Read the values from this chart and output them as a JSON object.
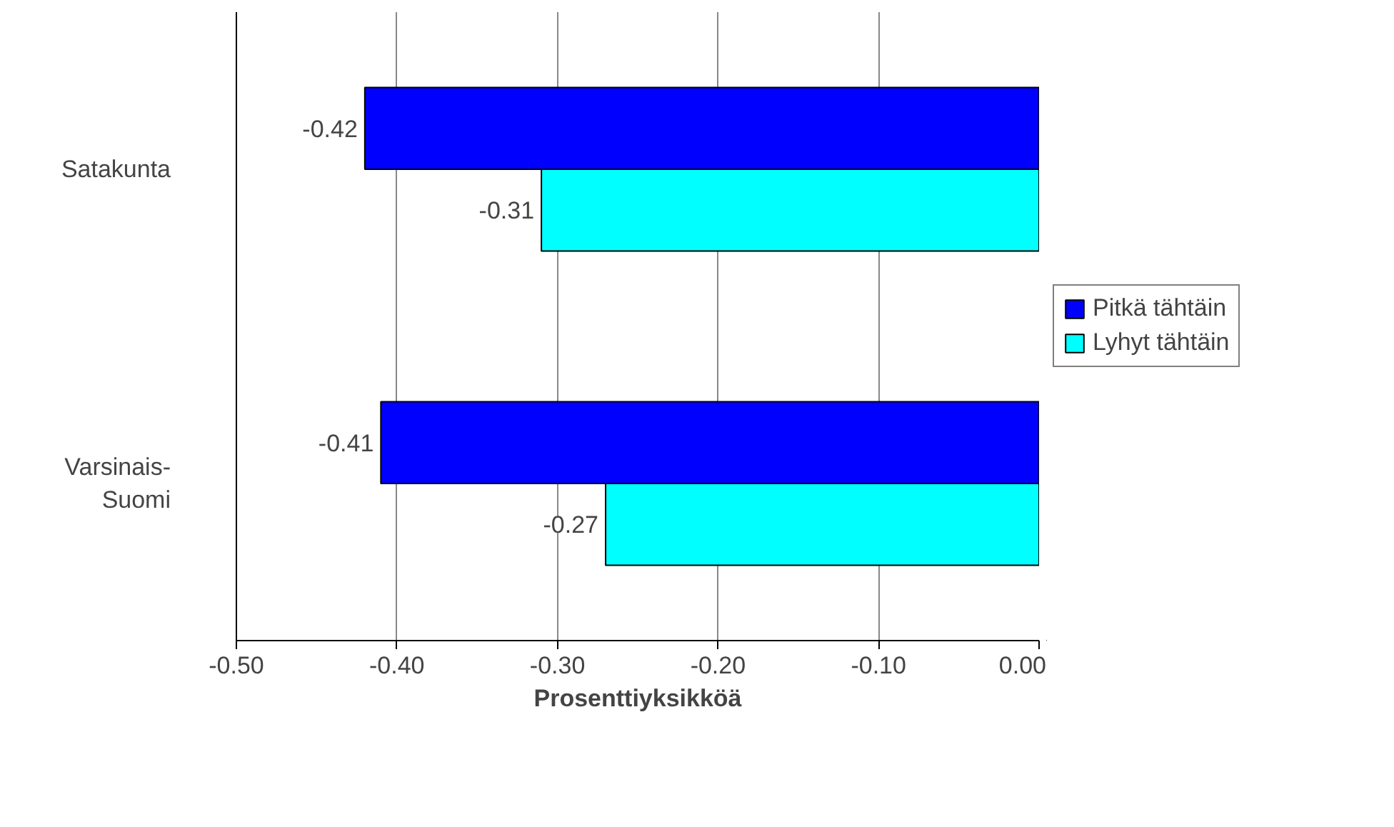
{
  "chart_data": {
    "type": "bar",
    "orientation": "horizontal",
    "categories": [
      "Satakunta",
      "Varsinais-Suomi"
    ],
    "series": [
      {
        "name": "Pitkä tähtäin",
        "color": "#0000ff",
        "values": [
          -0.42,
          -0.41
        ]
      },
      {
        "name": "Lyhyt tähtäin",
        "color": "#00ffff",
        "values": [
          -0.31,
          -0.27
        ]
      }
    ],
    "xlabel": "Prosenttiyksikköä",
    "xlim": [
      -0.5,
      0
    ],
    "xticks": [
      {
        "value": -0.5,
        "label": "-0.50"
      },
      {
        "value": -0.4,
        "label": "-0.40"
      },
      {
        "value": -0.3,
        "label": "-0.30"
      },
      {
        "value": -0.2,
        "label": "-0.20"
      },
      {
        "value": -0.1,
        "label": "-0.10"
      },
      {
        "value": 0,
        "label": "0.00"
      }
    ],
    "grid": "x",
    "legend": "right",
    "data_labels": true
  }
}
